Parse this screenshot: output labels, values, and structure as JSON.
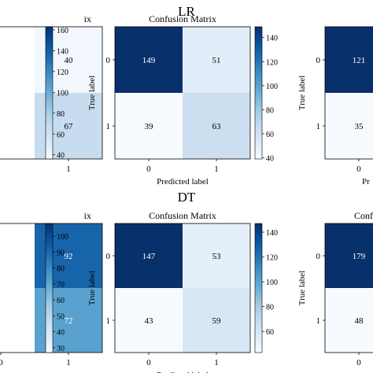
{
  "panel_titles": [
    "LR",
    "DT"
  ],
  "chart_data": [
    {
      "type": "heatmap",
      "row": 0,
      "col": 0,
      "title": "Confusion Matrix",
      "visible_title_fragment": "ix",
      "xlabel": "",
      "ylabel": "",
      "x_ticklabels": [
        "0",
        "1"
      ],
      "y_ticklabels": [
        "0",
        "1"
      ],
      "visible_x_ticklabels": [
        "1"
      ],
      "values": [
        [
          null,
          40
        ],
        [
          null,
          67
        ]
      ],
      "visible_cell_labels": [
        [
          null,
          "40"
        ],
        [
          null,
          "67"
        ]
      ],
      "colorbar": {
        "ticks": [
          40,
          60,
          80,
          100,
          120,
          140,
          160
        ],
        "range": [
          36,
          163
        ]
      },
      "cmap": [
        "#f7fbff",
        "#08306b"
      ]
    },
    {
      "type": "heatmap",
      "row": 0,
      "col": 1,
      "title": "Confusion Matrix",
      "xlabel": "Predicted label",
      "ylabel": "True label",
      "x_ticklabels": [
        "0",
        "1"
      ],
      "y_ticklabels": [
        "0",
        "1"
      ],
      "values": [
        [
          149,
          51
        ],
        [
          39,
          63
        ]
      ],
      "colorbar": {
        "ticks": [
          40,
          60,
          80,
          100,
          120,
          140
        ],
        "range": [
          39,
          149
        ]
      },
      "cmap": [
        "#f7fbff",
        "#08306b"
      ]
    },
    {
      "type": "heatmap",
      "row": 0,
      "col": 2,
      "title": "",
      "xlabel": "",
      "visible_xlabel_fragment": "Pr",
      "ylabel": "True label",
      "x_ticklabels": [
        "0",
        "1"
      ],
      "y_ticklabels": [
        "0",
        "1"
      ],
      "visible_x_ticklabels": [
        "0"
      ],
      "values": [
        [
          121,
          null
        ],
        [
          35,
          null
        ]
      ],
      "cmap": [
        "#f7fbff",
        "#08306b"
      ]
    },
    {
      "type": "heatmap",
      "row": 1,
      "col": 0,
      "title": "Confusion Matrix",
      "visible_title_fragment": "ix",
      "xlabel": "",
      "ylabel": "",
      "x_ticklabels": [
        "0",
        "1"
      ],
      "y_ticklabels": [
        "0",
        "1"
      ],
      "values": [
        [
          null,
          92
        ],
        [
          null,
          72
        ]
      ],
      "visible_cell_labels": [
        [
          null,
          "92"
        ],
        [
          null,
          "72"
        ]
      ],
      "colorbar": {
        "ticks": [
          30,
          40,
          50,
          60,
          70,
          80,
          90,
          100
        ],
        "range": [
          27,
          108
        ]
      },
      "cmap": [
        "#f7fbff",
        "#08306b"
      ]
    },
    {
      "type": "heatmap",
      "row": 1,
      "col": 1,
      "title": "Confusion Matrix",
      "xlabel": "Predicted label",
      "ylabel": "True label",
      "x_ticklabels": [
        "0",
        "1"
      ],
      "y_ticklabels": [
        "0",
        "1"
      ],
      "values": [
        [
          147,
          53
        ],
        [
          43,
          59
        ]
      ],
      "colorbar": {
        "ticks": [
          60,
          80,
          100,
          120,
          140
        ],
        "range": [
          43,
          147
        ]
      },
      "cmap": [
        "#f7fbff",
        "#08306b"
      ]
    },
    {
      "type": "heatmap",
      "row": 1,
      "col": 2,
      "title": "Confusion Matrix",
      "visible_title_fragment": "Conf",
      "xlabel": "",
      "ylabel": "True label",
      "x_ticklabels": [
        "0",
        "1"
      ],
      "y_ticklabels": [
        "0",
        "1"
      ],
      "values": [
        [
          179,
          null
        ],
        [
          48,
          null
        ]
      ],
      "cmap": [
        "#f7fbff",
        "#08306b"
      ]
    }
  ]
}
